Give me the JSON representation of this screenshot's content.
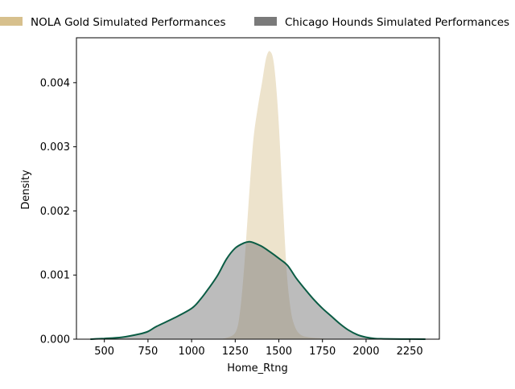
{
  "chart_data": {
    "type": "area",
    "xlabel": "Home_Rtng",
    "ylabel": "Density",
    "xlim": [
      340,
      2420
    ],
    "ylim": [
      0,
      0.0047
    ],
    "x_ticks": [
      500,
      750,
      1000,
      1250,
      1500,
      1750,
      2000,
      2250
    ],
    "x_tick_labels": [
      "500",
      "750",
      "1000",
      "1250",
      "1500",
      "1750",
      "2000",
      "2250"
    ],
    "y_ticks": [
      0,
      0.001,
      0.002,
      0.003,
      0.004
    ],
    "y_tick_labels": [
      "0.000",
      "0.001",
      "0.002",
      "0.003",
      "0.004"
    ],
    "grid": false,
    "legend_placement": "top",
    "series": [
      {
        "name": "NOLA Gold Simulated Performances",
        "fill_color": "#d7c08d",
        "line_color": "#ffffff",
        "x": [
          1100,
          1150,
          1200,
          1250,
          1275,
          1300,
          1325,
          1350,
          1375,
          1400,
          1425,
          1450,
          1475,
          1500,
          1525,
          1550,
          1575,
          1600,
          1625,
          1650,
          1700,
          1750,
          1800,
          1850
        ],
        "y": [
          0,
          1e-05,
          3e-05,
          0.00012,
          0.00045,
          0.0012,
          0.0022,
          0.0031,
          0.0036,
          0.004,
          0.0044,
          0.0045,
          0.0043,
          0.0035,
          0.0022,
          0.001,
          0.0004,
          0.00017,
          8e-05,
          5e-05,
          3e-05,
          2e-05,
          1e-05,
          0
        ]
      },
      {
        "name": "Chicago Hounds Simulated Performances",
        "fill_color": "#7a7a7a",
        "line_color": "#0a5c44",
        "x": [
          420,
          500,
          600,
          700,
          750,
          800,
          900,
          1000,
          1050,
          1100,
          1150,
          1200,
          1250,
          1300,
          1330,
          1350,
          1400,
          1450,
          1500,
          1550,
          1600,
          1650,
          1700,
          1750,
          1800,
          1850,
          1900,
          1950,
          2000,
          2050,
          2100,
          2200,
          2340
        ],
        "y": [
          0,
          1e-05,
          3e-05,
          8e-05,
          0.00012,
          0.0002,
          0.00033,
          0.00048,
          0.00062,
          0.0008,
          0.001,
          0.00125,
          0.00142,
          0.0015,
          0.00152,
          0.00151,
          0.00145,
          0.00136,
          0.00126,
          0.00115,
          0.00095,
          0.00078,
          0.00062,
          0.00048,
          0.00036,
          0.00024,
          0.00014,
          7e-05,
          3e-05,
          1e-05,
          5e-06,
          2e-06,
          0
        ]
      }
    ]
  }
}
